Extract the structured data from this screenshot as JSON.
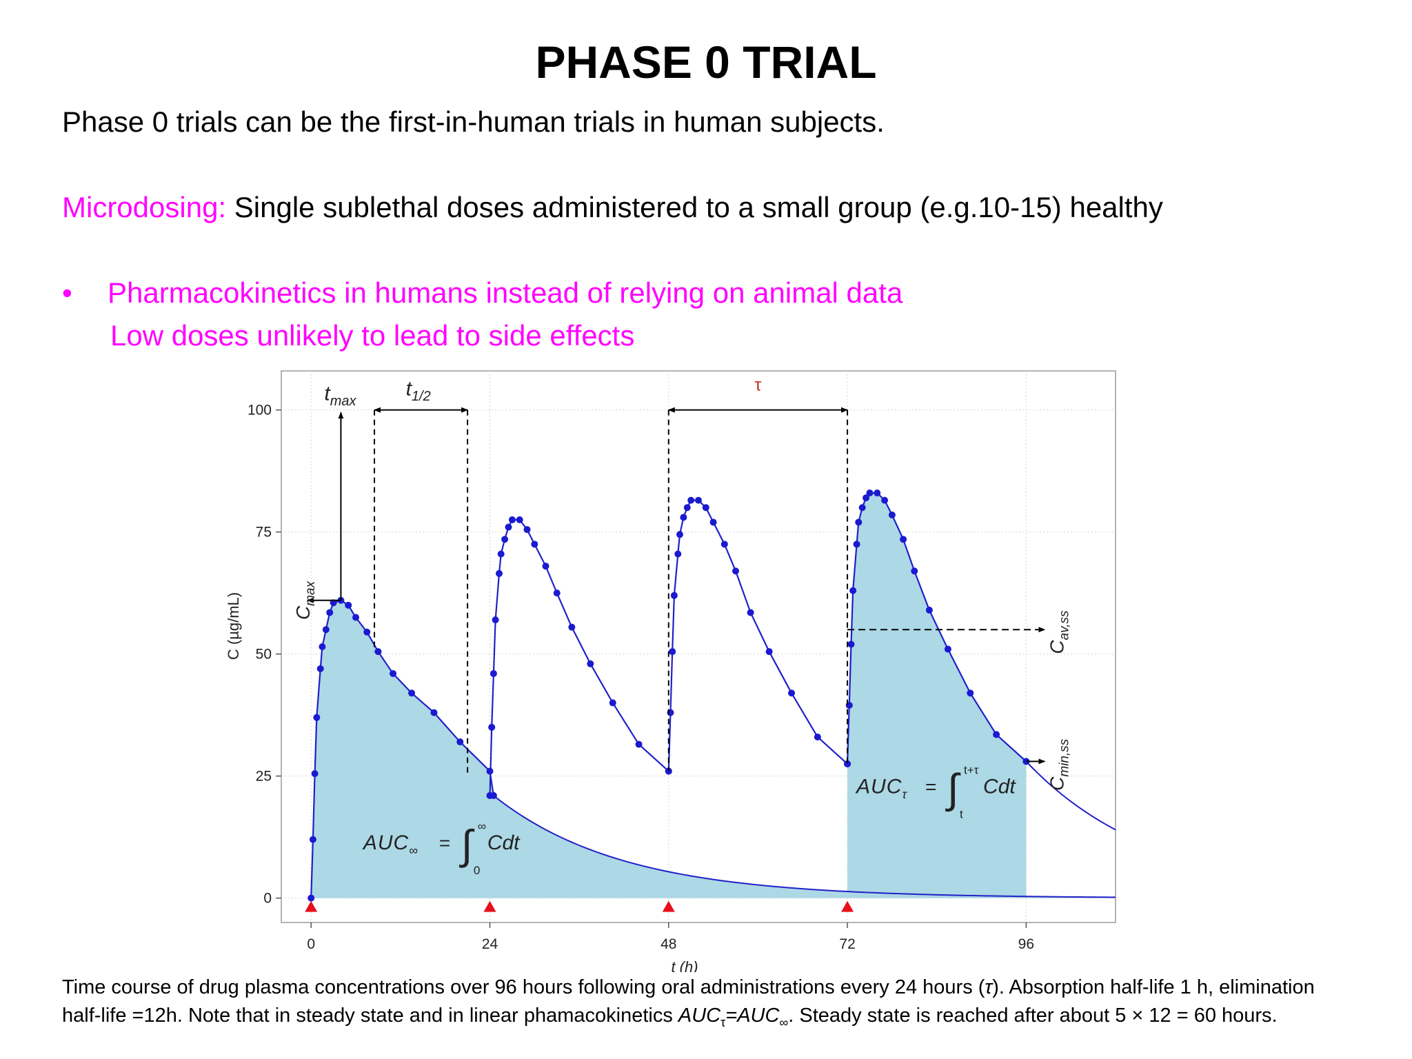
{
  "slide": {
    "title": "PHASE 0 TRIAL",
    "intro": "Phase 0 trials can be the first-in-human trials  in human subjects.",
    "microdosing_label": "Microdosing:",
    "microdosing_text": " Single sublethal doses administered to a small group (e.g.10-15) healthy",
    "bullet_symbol": "•",
    "bullet_line1": "Pharmacokinetics in humans instead of relying on animal data",
    "bullet_line2": "Low doses unlikely to lead to side effects",
    "accent_color": "#ff00ff"
  },
  "caption": {
    "part1": "Time course of drug plasma concentrations over 96 hours following oral administrations every 24 hours (",
    "tau": "τ",
    "part2": "). Absorption half-life 1 h,  elimination half-life =12h. Note that in steady state and in linear phamacokinetics ",
    "auc": "AUC",
    "sub_tau": "τ",
    "equals": "=",
    "auc2": "AUC",
    "sub_inf": "∞",
    "part3": ". Steady state is reached after about 5 × 12 = 60 hours."
  },
  "chart_data": {
    "type": "line",
    "xlabel": "t (h)",
    "ylabel": "C (µg/mL)",
    "x_ticks": [
      0,
      24,
      48,
      72,
      96
    ],
    "y_ticks": [
      0,
      25,
      50,
      75,
      100
    ],
    "xlim": [
      -4,
      108
    ],
    "ylim": [
      -5,
      108
    ],
    "grid": true,
    "dose_times": [
      0,
      24,
      48,
      72
    ],
    "absorption_half_life_h": 1,
    "elimination_half_life_h": 12,
    "dosing_interval_h": 24,
    "series": [
      {
        "values": [
          [
            0,
            0
          ],
          [
            0.25,
            12
          ],
          [
            0.5,
            25.5
          ],
          [
            0.75,
            37
          ],
          [
            1.25,
            47
          ],
          [
            1.5,
            51.5
          ],
          [
            2,
            55
          ],
          [
            2.5,
            58.5
          ],
          [
            3,
            60.5
          ],
          [
            4,
            61
          ],
          [
            5,
            60
          ],
          [
            6,
            57.5
          ],
          [
            7.5,
            54.5
          ],
          [
            9,
            50.5
          ],
          [
            11,
            46
          ],
          [
            13.5,
            42
          ],
          [
            16.5,
            38
          ],
          [
            20,
            32
          ],
          [
            24,
            26
          ],
          [
            24.5,
            21
          ]
        ]
      },
      {
        "values": [
          [
            24,
            21
          ],
          [
            24.25,
            35
          ],
          [
            24.5,
            46
          ],
          [
            24.75,
            57
          ],
          [
            25.25,
            66.5
          ],
          [
            25.5,
            70.5
          ],
          [
            26,
            73.5
          ],
          [
            26.5,
            76
          ],
          [
            27,
            77.5
          ],
          [
            28,
            77.5
          ],
          [
            29,
            75.5
          ],
          [
            30,
            72.5
          ],
          [
            31.5,
            68
          ],
          [
            33,
            62.5
          ],
          [
            35,
            55.5
          ],
          [
            37.5,
            48
          ],
          [
            40.5,
            40
          ],
          [
            44,
            31.5
          ],
          [
            48,
            26
          ]
        ]
      },
      {
        "values": [
          [
            48,
            26
          ],
          [
            48.25,
            38
          ],
          [
            48.5,
            50.5
          ],
          [
            48.75,
            62
          ],
          [
            49.25,
            70.5
          ],
          [
            49.5,
            74.5
          ],
          [
            50,
            78
          ],
          [
            50.5,
            80
          ],
          [
            51,
            81.5
          ],
          [
            52,
            81.5
          ],
          [
            53,
            80
          ],
          [
            54,
            77
          ],
          [
            55.5,
            72.5
          ],
          [
            57,
            67
          ],
          [
            59,
            58.5
          ],
          [
            61.5,
            50.5
          ],
          [
            64.5,
            42
          ],
          [
            68,
            33
          ],
          [
            72,
            27.5
          ]
        ]
      },
      {
        "values": [
          [
            72,
            27.5
          ],
          [
            72.25,
            39.5
          ],
          [
            72.5,
            52
          ],
          [
            72.75,
            63
          ],
          [
            73.25,
            72.5
          ],
          [
            73.5,
            77
          ],
          [
            74,
            80
          ],
          [
            74.5,
            82
          ],
          [
            75,
            83
          ],
          [
            76,
            83
          ],
          [
            77,
            81.5
          ],
          [
            78,
            78.5
          ],
          [
            79.5,
            73.5
          ],
          [
            81,
            67
          ],
          [
            83,
            59
          ],
          [
            85.5,
            51
          ],
          [
            88.5,
            42
          ],
          [
            92,
            33.5
          ],
          [
            96,
            28
          ]
        ]
      }
    ],
    "single_dose_curve": "C(t) = 0.2 + 36.4·(exp(-0.0578·t) − exp(-0.693·t))·2.75",
    "annotations": {
      "tmax_t": "t",
      "tmax_sub": "max",
      "thalf_t": "t",
      "thalf_sub": "1/2",
      "tau": "τ",
      "cmax_c": "C",
      "cmax_sub": "max",
      "cav_c": "C",
      "cav_sub": "av,ss",
      "cmin_c": "C",
      "cmin_sub": "min,ss",
      "auc_inf": "AUC",
      "auc_inf_sub": "∞",
      "auc_inf_eq": "=",
      "auc_inf_upper": "∞",
      "auc_inf_lower": "0",
      "auc_inf_integrand": "Cdt",
      "auc_tau": "AUC",
      "auc_tau_sub": "τ",
      "auc_tau_eq": "=",
      "auc_tau_upper": "t+τ",
      "auc_tau_lower": "t",
      "auc_tau_integrand": "Cdt",
      "cav_value": 55,
      "cmin_value": 28,
      "cmax_value": 61,
      "tmax_value": 4,
      "thalf_range": [
        8.5,
        21
      ],
      "tau_range": [
        48,
        72
      ]
    },
    "colors": {
      "curve": "#2020c8",
      "marker": "#1a1ad0",
      "fill": "#add8e6",
      "dose_marker": "#e8101a"
    }
  }
}
